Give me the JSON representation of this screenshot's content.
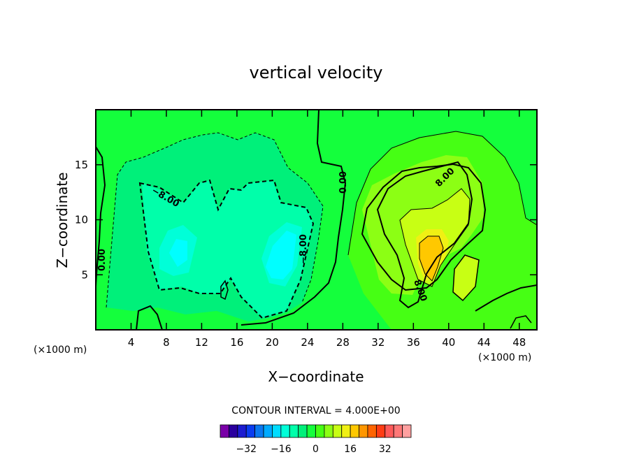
{
  "chart_data": {
    "type": "heatmap",
    "title": "vertical velocity",
    "xlabel": "X−coordinate",
    "ylabel": "Z−coordinate",
    "x_unit_label": "(×1000 m)",
    "z_unit_label": "(×1000 m)",
    "xlim": [
      0,
      50
    ],
    "ylim": [
      0,
      20
    ],
    "x_ticks": [
      4,
      8,
      12,
      16,
      20,
      24,
      28,
      32,
      36,
      40,
      44,
      48
    ],
    "y_ticks": [
      5,
      10,
      15
    ],
    "contour_interval_text": "CONTOUR INTERVAL = 4.000E+00",
    "contour_labels": [
      "0.00",
      "0.00",
      "−8.00",
      "−8.00",
      "8.00",
      "8.00"
    ],
    "colorbar": {
      "colors": [
        "#7a00a8",
        "#2a009e",
        "#1c1cd0",
        "#0a3cf0",
        "#0a78f0",
        "#00aaff",
        "#00dcff",
        "#00ffd8",
        "#00ffaa",
        "#00f07a",
        "#14ff3c",
        "#46ff14",
        "#8cff14",
        "#c8ff14",
        "#f0f014",
        "#ffc800",
        "#ff9600",
        "#ff6400",
        "#ff3c14",
        "#ff5a5a",
        "#ff7878",
        "#ffa0a0"
      ],
      "tick_labels": [
        "−32",
        "−16",
        "0",
        "16",
        "32"
      ],
      "tick_values": [
        -32,
        -16,
        0,
        16,
        32
      ]
    },
    "fields": {
      "background_level": 0,
      "downdraft": {
        "x_range": [
          4,
          26
        ],
        "z_range": [
          2,
          17.5
        ],
        "min_value": -16,
        "cores": [
          [
            10,
            7.5
          ],
          [
            20.5,
            7.5
          ]
        ]
      },
      "updraft": {
        "x_range": [
          30,
          49
        ],
        "z_range": [
          0.5,
          17.5
        ],
        "max_value": 16,
        "cores": [
          [
            38.5,
            7
          ]
        ]
      }
    },
    "grid": false
  }
}
